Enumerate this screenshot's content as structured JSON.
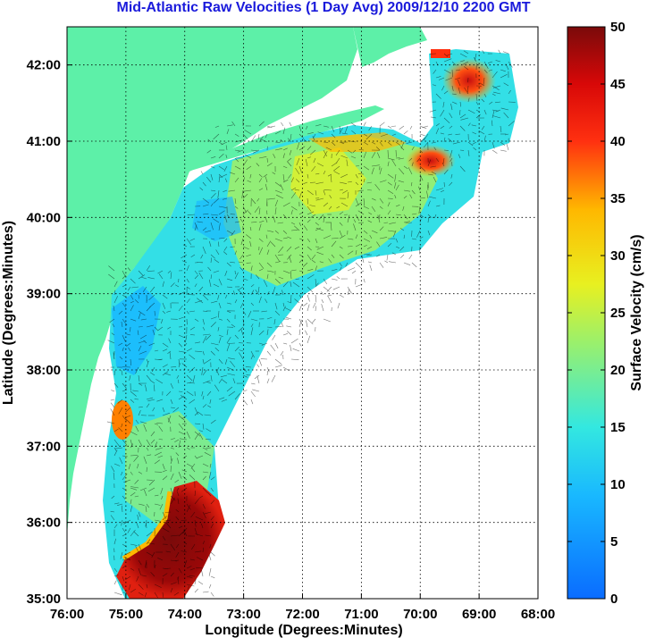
{
  "title": "Mid-Atlantic Raw Velocities (1 Day Avg) 2009/12/10 2200 GMT",
  "map": {
    "xlabel": "Longitude (Degrees:Minutes)",
    "ylabel": "Latitude (Degrees:Minutes)",
    "lon_ticks": [
      "76:00",
      "75:00",
      "74:00",
      "73:00",
      "72:00",
      "71:00",
      "70:00",
      "69:00",
      "68:00"
    ],
    "lat_ticks": [
      "42:00",
      "41:00",
      "40:00",
      "39:00",
      "38:00",
      "37:00",
      "36:00",
      "35:00"
    ],
    "lon_range": [
      -76,
      -68
    ],
    "lat_range": [
      35,
      42.5
    ],
    "land_color": "#5df0a8",
    "grid": "dotted"
  },
  "colorbar": {
    "label": "Surface Velocity (cm/s)",
    "ticks": [
      "50",
      "45",
      "40",
      "35",
      "30",
      "25",
      "20",
      "15",
      "10",
      "5",
      "0"
    ],
    "range": [
      0,
      50
    ],
    "colormap": "jet"
  }
}
